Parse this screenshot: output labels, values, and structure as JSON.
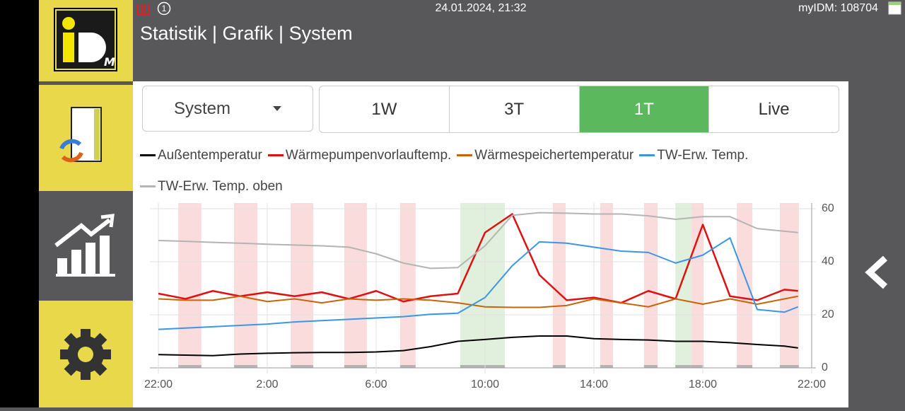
{
  "header": {
    "badge": "1",
    "datetime": "24.01.2024, 21:32",
    "device": "myIDM: 108704",
    "title": "Statistik | Grafik | System"
  },
  "selector": {
    "value": "System"
  },
  "ranges": {
    "options": [
      "1W",
      "3T",
      "1T",
      "Live"
    ],
    "active": 2
  },
  "chart_data": {
    "type": "line",
    "x": [
      0,
      1,
      2,
      3,
      4,
      5,
      6,
      7,
      8,
      9,
      10,
      11,
      12,
      13,
      14,
      15,
      16,
      17,
      18,
      19,
      20,
      21,
      22,
      23,
      23.5
    ],
    "xlim": [
      0,
      24
    ],
    "xticks": [
      {
        "value": 0,
        "label": "22:00"
      },
      {
        "value": 4,
        "label": "2:00"
      },
      {
        "value": 8,
        "label": "6:00"
      },
      {
        "value": 12,
        "label": "10:00"
      },
      {
        "value": 16,
        "label": "14:00"
      },
      {
        "value": 20,
        "label": "18:00"
      },
      {
        "value": 24,
        "label": "22:00"
      }
    ],
    "ylim": [
      0,
      60
    ],
    "yticks": [
      0,
      20,
      40,
      60
    ],
    "grid": true,
    "series": [
      {
        "name": "Außentemperatur",
        "color": "#000000",
        "values": [
          5,
          4.8,
          4.6,
          5.2,
          5.5,
          5.7,
          5.8,
          5.8,
          6,
          6.5,
          8,
          10,
          10.7,
          11.5,
          12,
          12,
          11,
          10.7,
          10.5,
          10,
          10,
          9.5,
          8.8,
          8.2,
          7.5
        ]
      },
      {
        "name": "Wärmepumpenvorlauftemp.",
        "color": "#e01010",
        "values": [
          28,
          26,
          29,
          27,
          28.5,
          27,
          28.5,
          26,
          29,
          25,
          27,
          28,
          51,
          58,
          35,
          25.5,
          26.5,
          24.5,
          29,
          26,
          54,
          27,
          25.5,
          29.5,
          29
        ]
      },
      {
        "name": "Wärmespeichertemperatur",
        "color": "#c8640a",
        "values": [
          26,
          25.5,
          25.5,
          27,
          25,
          26,
          24.5,
          26,
          25.5,
          26,
          25.5,
          24.5,
          23,
          22.8,
          22.8,
          23.5,
          26,
          24.5,
          23,
          26,
          24,
          26,
          24,
          26,
          27
        ]
      },
      {
        "name": "TW-Erw. Temp.",
        "color": "#3c96e6",
        "values": [
          14.5,
          15,
          15.5,
          16,
          16.5,
          17.3,
          17.8,
          18.3,
          18.8,
          19.3,
          20.2,
          20.6,
          26.5,
          38.5,
          47.5,
          47,
          45.5,
          44,
          43.5,
          39.5,
          42.5,
          49,
          22,
          21,
          23
        ]
      },
      {
        "name": "TW-Erw. Temp. oben",
        "color": "#b4b4b4",
        "values": [
          48,
          47.7,
          47.3,
          47,
          46.6,
          46.3,
          46,
          45.5,
          43,
          39.5,
          37.5,
          37.8,
          46,
          57.5,
          58.5,
          58.3,
          58,
          58,
          57.3,
          56,
          57,
          57,
          52.5,
          51.5,
          51
        ]
      }
    ],
    "bands": [
      {
        "color": "#fadcdc",
        "x": [
          0.73,
          1.58
        ]
      },
      {
        "color": "#fadcdc",
        "x": [
          2.78,
          3.64
        ]
      },
      {
        "color": "#fadcdc",
        "x": [
          4.86,
          5.69
        ]
      },
      {
        "color": "#fadcdc",
        "x": [
          6.83,
          7.66
        ]
      },
      {
        "color": "#fadcdc",
        "x": [
          8.88,
          9.45
        ]
      },
      {
        "color": "#e0f0dc",
        "x": [
          11.09,
          12.73
        ]
      },
      {
        "color": "#fadcdc",
        "x": [
          14.49,
          14.96
        ]
      },
      {
        "color": "#fadcdc",
        "x": [
          16.23,
          16.7
        ]
      },
      {
        "color": "#fadcdc",
        "x": [
          17.84,
          18.34
        ]
      },
      {
        "color": "#e0f0dc",
        "x": [
          18.99,
          19.58
        ]
      },
      {
        "color": "#fadcdc",
        "x": [
          19.58,
          20.03
        ]
      },
      {
        "color": "#fadcdc",
        "x": [
          21.25,
          21.82
        ]
      },
      {
        "color": "#fadcdc",
        "x": [
          22.83,
          23.53
        ]
      }
    ]
  }
}
